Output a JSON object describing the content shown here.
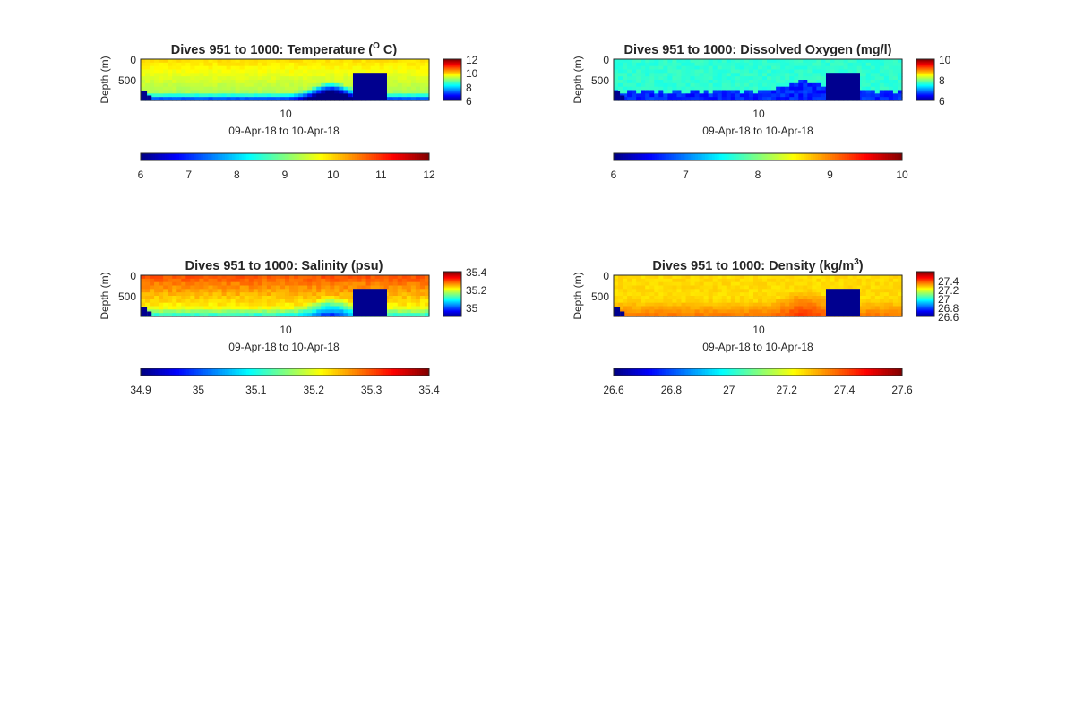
{
  "chart_data": [
    {
      "type": "heatmap",
      "title": "Dives 951 to 1000: Temperature (",
      "title_sup": "O",
      "title_tail": " C)",
      "ylabel": "Depth (m)",
      "xlabel": "09-Apr-18 to 10-Apr-18",
      "x_ticks": [
        "10"
      ],
      "y_ticks": [
        "0",
        "500"
      ],
      "ylim": [
        1000,
        0
      ],
      "field": "temperature",
      "clim": [
        6,
        12
      ],
      "cbar_right_ticks": [
        "12",
        "10",
        "8",
        "6"
      ],
      "cbar_bottom_ticks": [
        "6",
        "7",
        "8",
        "9",
        "10",
        "11",
        "12"
      ]
    },
    {
      "type": "heatmap",
      "title": "Dives 951 to 1000: Dissolved Oxygen (mg/l)",
      "title_sup": "",
      "title_tail": "",
      "ylabel": "Depth (m)",
      "xlabel": "09-Apr-18 to 10-Apr-18",
      "x_ticks": [
        "10"
      ],
      "y_ticks": [
        "0",
        "500"
      ],
      "ylim": [
        1000,
        0
      ],
      "field": "oxygen",
      "clim": [
        6,
        10
      ],
      "cbar_right_ticks": [
        "10",
        "8",
        "6"
      ],
      "cbar_bottom_ticks": [
        "6",
        "7",
        "8",
        "9",
        "10"
      ]
    },
    {
      "type": "heatmap",
      "title": "Dives 951 to 1000: Salinity (psu)",
      "title_sup": "",
      "title_tail": "",
      "ylabel": "Depth (m)",
      "xlabel": "09-Apr-18 to 10-Apr-18",
      "x_ticks": [
        "10"
      ],
      "y_ticks": [
        "0",
        "500"
      ],
      "ylim": [
        1000,
        0
      ],
      "field": "salinity",
      "clim": [
        34.9,
        35.4
      ],
      "cbar_right_ticks": [
        "35.4",
        "35.2",
        "35"
      ],
      "cbar_bottom_ticks": [
        "34.9",
        "35",
        "35.1",
        "35.2",
        "35.3",
        "35.4"
      ]
    },
    {
      "type": "heatmap",
      "title": "Dives 951 to 1000: Density (kg/m",
      "title_sup": "3",
      "title_tail": ")",
      "ylabel": "Depth (m)",
      "xlabel": "09-Apr-18 to 10-Apr-18",
      "x_ticks": [
        "10"
      ],
      "y_ticks": [
        "0",
        "500"
      ],
      "ylim": [
        1000,
        0
      ],
      "field": "density",
      "clim": [
        26.6,
        27.6
      ],
      "cbar_right_ticks": [
        "27.4",
        "27.2",
        "27",
        "26.8",
        "26.6"
      ],
      "cbar_bottom_ticks": [
        "26.6",
        "26.8",
        "27",
        "27.2",
        "27.4",
        "27.6"
      ]
    }
  ]
}
